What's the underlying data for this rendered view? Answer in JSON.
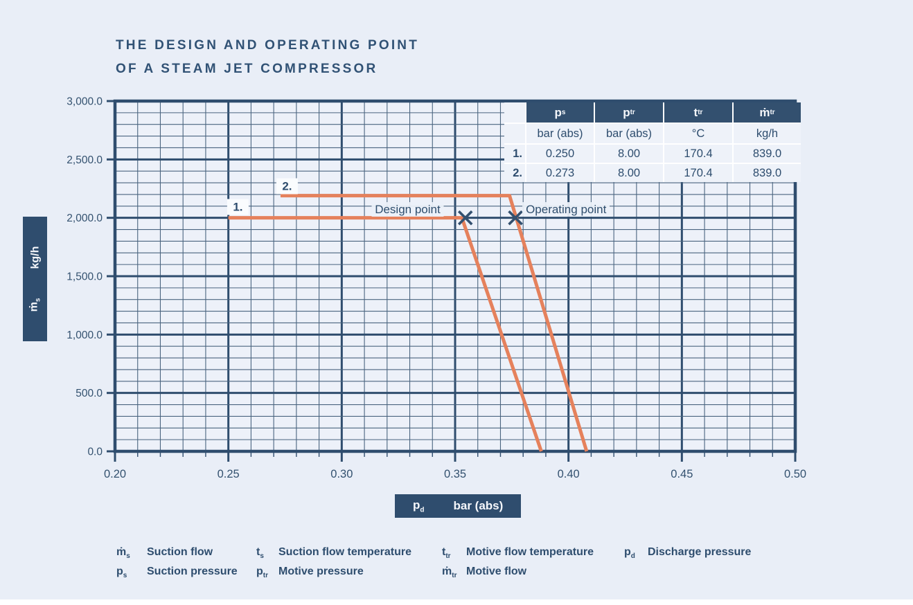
{
  "title": {
    "line1": "THE DESIGN AND OPERATING POINT",
    "line2": "OF A STEAM JET COMPRESSOR"
  },
  "colors": {
    "ink": "#2E4D6E",
    "grid_major": "#2F4D6E",
    "grid_minor": "#4A647F",
    "curve": "#E5815C",
    "marker": "#33506F",
    "page_background": "#E9EEF7",
    "plot_background": "#EDF1F9",
    "table_header_bg": "#33506F",
    "table_cell_bg": "#EEF2F9",
    "chip_bg": "#FAFCFE"
  },
  "chart_data": {
    "type": "line",
    "title": "THE DESIGN AND OPERATING POINT OF A STEAM JET COMPRESSOR",
    "xlabel": {
      "symbol": "p",
      "sub": "d",
      "unit": "bar (abs)"
    },
    "ylabel": {
      "symbol": "ṁ",
      "sub": "s",
      "unit": "kg/h"
    },
    "xlim": [
      0.2,
      0.5
    ],
    "ylim": [
      0,
      3000
    ],
    "x_major_step": 0.05,
    "x_minor_step": 0.01,
    "y_major_step": 500,
    "y_minor_step": 100,
    "grid": true,
    "x_tick_labels": [
      "0.20",
      "0.25",
      "0.30",
      "0.35",
      "0.40",
      "0.45",
      "0.50"
    ],
    "y_tick_labels": [
      "0.0",
      "500.0",
      "1,000.0",
      "1,500.0",
      "2,000.0",
      "2,500.0",
      "3,000.0"
    ],
    "series": [
      {
        "name": "1.",
        "label_pos": {
          "x": 0.2542,
          "y": 2090
        },
        "points": [
          [
            0.25,
            2000
          ],
          [
            0.353,
            2000
          ],
          [
            0.388,
            0
          ]
        ]
      },
      {
        "name": "2.",
        "label_pos": {
          "x": 0.2759,
          "y": 2270
        },
        "points": [
          [
            0.273,
            2190
          ],
          [
            0.374,
            2190
          ],
          [
            0.408,
            0
          ]
        ]
      }
    ],
    "markers": [
      {
        "label": "Design point",
        "x": 0.3545,
        "y": 2000,
        "label_side": "left"
      },
      {
        "label": "Operating point",
        "x": 0.3766,
        "y": 2000,
        "label_side": "right"
      }
    ]
  },
  "table": {
    "headers": [
      {
        "base": "p",
        "sub": "s"
      },
      {
        "base": "p",
        "sub": "tr"
      },
      {
        "base": "t",
        "sub": "tr"
      },
      {
        "base": "ṁ",
        "sub": "tr"
      }
    ],
    "units": [
      "bar (abs)",
      "bar (abs)",
      "°C",
      "kg/h"
    ],
    "rows": [
      {
        "index": "1.",
        "values": [
          "0.250",
          "8.00",
          "170.4",
          "839.0"
        ]
      },
      {
        "index": "2.",
        "values": [
          "0.273",
          "8.00",
          "170.4",
          "839.0"
        ]
      }
    ]
  },
  "legend": {
    "columns": [
      {
        "items": [
          {
            "base": "ṁ",
            "sub": "s",
            "text": "Suction flow"
          },
          {
            "base": "p",
            "sub": "s",
            "text": "Suction pressure"
          }
        ]
      },
      {
        "items": [
          {
            "base": "t",
            "sub": "s",
            "text": "Suction flow temperature"
          },
          {
            "base": "p",
            "sub": "tr",
            "text": "Motive pressure"
          }
        ]
      },
      {
        "items": [
          {
            "base": "t",
            "sub": "tr",
            "text": "Motive flow temperature"
          },
          {
            "base": "ṁ",
            "sub": "tr",
            "text": "Motive flow"
          }
        ]
      },
      {
        "items": [
          {
            "base": "p",
            "sub": "d",
            "text": "Discharge pressure"
          }
        ]
      }
    ]
  }
}
